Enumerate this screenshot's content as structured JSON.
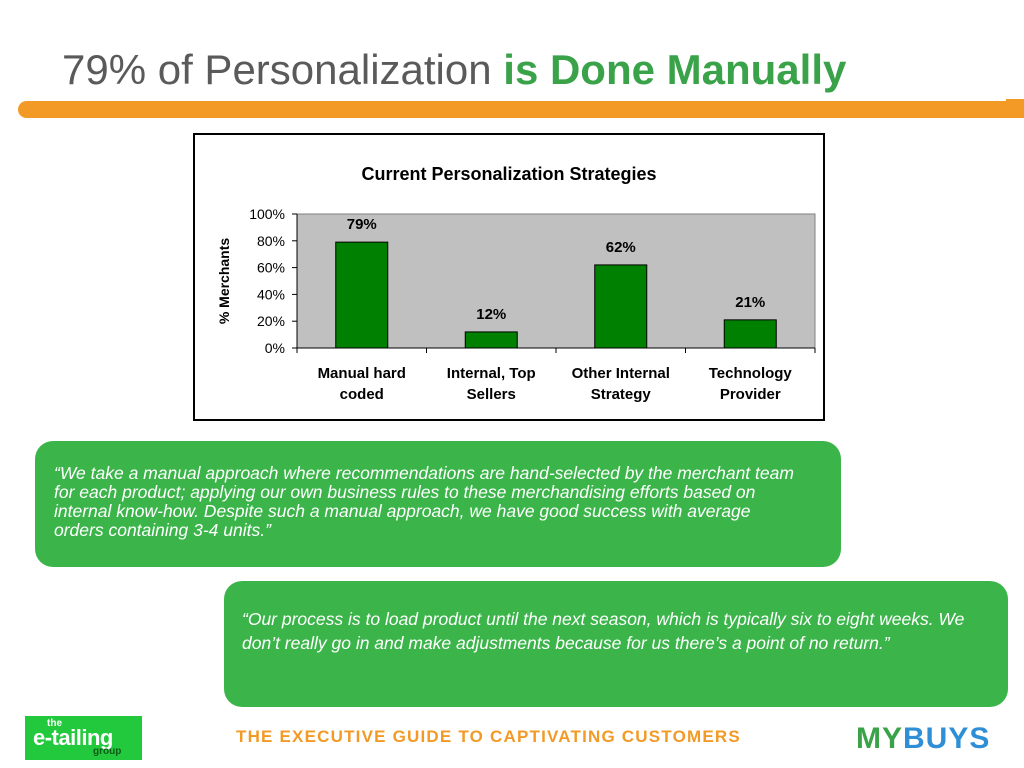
{
  "slide": {
    "title_part1": "79% of Personalization",
    "title_part2": "is Done Manually",
    "quote1": "“We take a manual approach where recommendations are hand-selected by the merchant team for each product; applying our own business rules to these merchandising efforts based on internal know-how. Despite such a manual approach, we have good success with average orders containing 3-4 units.”",
    "quote2": "“Our process is to load product until the next season, which is typically six to eight weeks. We don’t really go in and make adjustments because for us there’s a point of no return.”",
    "footer": "THE EXECUTIVE GUIDE TO CAPTIVATING CUSTOMERS",
    "logo_left": {
      "the": "the",
      "main": "e-tailing",
      "group": "group"
    },
    "logo_right": {
      "part1": "MY",
      "part2": "BUYS"
    },
    "colors": {
      "green": "#3bb54a",
      "orange": "#f39a26",
      "bar": "#008000",
      "plot_bg": "#c0c0c0"
    }
  },
  "chart_data": {
    "type": "bar",
    "title": "Current Personalization Strategies",
    "ylabel": "% Merchants",
    "xlabel": "",
    "categories": [
      [
        "Manual hard",
        "coded"
      ],
      [
        "Internal, Top",
        "Sellers"
      ],
      [
        "Other Internal",
        "Strategy"
      ],
      [
        "Technology",
        "Provider"
      ]
    ],
    "values": [
      79,
      12,
      62,
      21
    ],
    "data_labels": [
      "79%",
      "12%",
      "62%",
      "21%"
    ],
    "ylim": [
      0,
      100
    ],
    "yticks": [
      0,
      20,
      40,
      60,
      80,
      100
    ],
    "ytick_labels": [
      "0%",
      "20%",
      "40%",
      "60%",
      "80%",
      "100%"
    ],
    "grid": false,
    "legend": "none"
  }
}
